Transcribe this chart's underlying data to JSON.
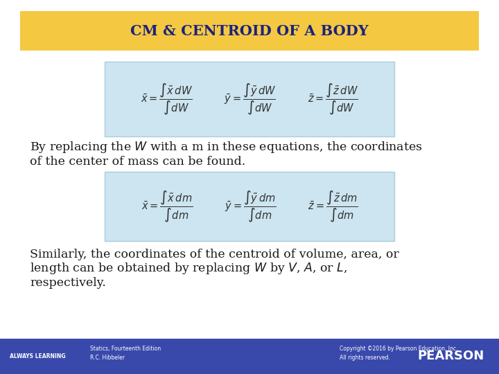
{
  "title": "CM & CENTROID OF A BODY",
  "title_color": "#1a237e",
  "title_bg_color": "#f5c842",
  "slide_bg_color": "#ffffff",
  "footer_bg_color": "#3949ab",
  "footer_text_color": "#ffffff",
  "always_learning": "ALWAYS LEARNING",
  "book_info": "Statics, Fourteenth Edition\nR.C. Hibbeler",
  "copyright": "Copyright ©2016 by Pearson Education, Inc.\nAll rights reserved.",
  "pearson": "PEARSON",
  "eq_box1_color": "#cce5f0",
  "eq_box2_color": "#cce5f0",
  "text_body_color": "#1a1a1a",
  "paragraph1_line1": "By replacing the $W$ with a m in these equations, the coordinates",
  "paragraph1_line2": "of the center of mass can be found.",
  "paragraph2_line1": "Similarly, the coordinates of the centroid of volume, area, or",
  "paragraph2_line2": "length can be obtained by replacing $W$ by $V$, $A$, or $L$,",
  "paragraph2_line3": "respectively."
}
